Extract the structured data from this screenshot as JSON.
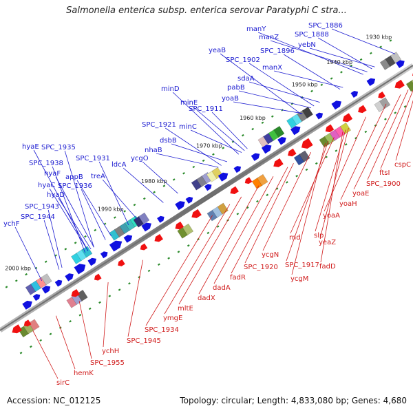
{
  "title": "Salmonella enterica subsp. enterica serovar Paratyphi C stra...",
  "footer": {
    "accession": "Accession: NC_012125",
    "summary": "Topology: circular; Length: 4,833,080 bp; Genes: 4,680"
  },
  "kbp_ticks": [
    "1930 kbp",
    "1940 kbp",
    "1950 kbp",
    "1960 kbp",
    "1970 kbp",
    "1980 kbp",
    "1990 kbp",
    "2000 kbp"
  ],
  "colors": {
    "forward_strand": "#1010e0",
    "reverse_strand": "#f01010",
    "forward_label": "#1a1ad0",
    "reverse_label": "#d01a1a",
    "backbone": "#707070",
    "tick": "#2a8a2a"
  },
  "forward_labels": [
    "manY",
    "manZ",
    "SPC_1886",
    "SPC_1888",
    "yebN",
    "yeaB",
    "SPC_1896",
    "SPC_1902",
    "manX",
    "sdaA",
    "pabB",
    "yoaB",
    "minD",
    "minE",
    "SPC_1911",
    "minC",
    "SPC_1921",
    "dsbB",
    "nhaB",
    "hyaE",
    "SPC_1935",
    "SPC_1931",
    "ldcA",
    "ycgO",
    "SPC_1938",
    "hyaF",
    "appB",
    "treA",
    "hyaC",
    "SPC_1936",
    "hyaD",
    "SPC_1943",
    "SPC_1944",
    "ychF"
  ],
  "reverse_labels": [
    "cspC",
    "ftsI",
    "SPC_1900",
    "yoaE",
    "yoaH",
    "yoaA",
    "slp",
    "yeaZ",
    "rnd",
    "fadD",
    "SPC_1917",
    "ycgN",
    "ycgM",
    "SPC_1920",
    "fadR",
    "dadA",
    "dadX",
    "mltE",
    "ymgE",
    "SPC_1934",
    "SPC_1945",
    "ychH",
    "SPC_1955",
    "hemK",
    "sirC"
  ]
}
